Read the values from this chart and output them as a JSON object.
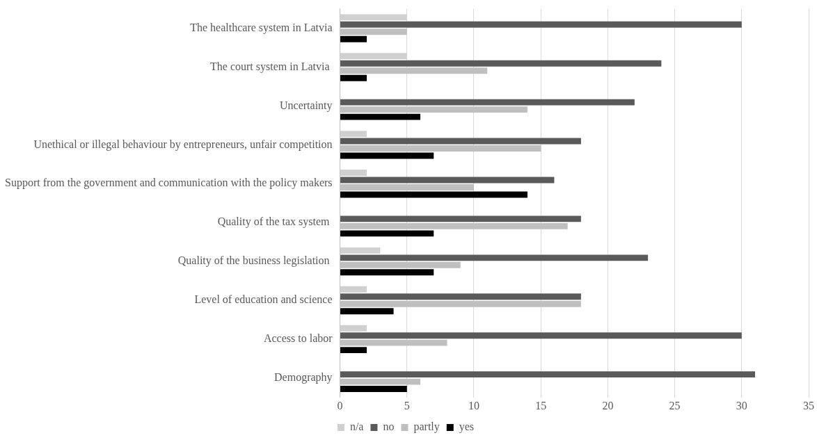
{
  "chart_data": {
    "type": "bar",
    "orientation": "horizontal",
    "categories": [
      "The healthcare system in Latvia",
      "The court system in Latvia ",
      "Uncertainty",
      "Unethical or illegal behaviour by entrepreneurs, unfair competition",
      "Support from the government and communication with the policy makers",
      "Quality of the tax system ",
      "Quality of the business legislation ",
      "Level of education and science",
      "Access to labor",
      "Demography"
    ],
    "series": [
      {
        "name": "n/a",
        "color": "#d0d0d0",
        "values": [
          5,
          5,
          0,
          2,
          2,
          0,
          3,
          2,
          2,
          0
        ]
      },
      {
        "name": "no",
        "color": "#5a5a5a",
        "values": [
          30,
          24,
          22,
          18,
          16,
          18,
          23,
          18,
          30,
          31
        ]
      },
      {
        "name": "partly",
        "color": "#bfbfbf",
        "values": [
          5,
          11,
          14,
          15,
          10,
          17,
          9,
          18,
          8,
          6
        ]
      },
      {
        "name": "yes",
        "color": "#000000",
        "values": [
          2,
          2,
          6,
          7,
          14,
          7,
          7,
          4,
          2,
          5
        ]
      }
    ],
    "xlim": [
      0,
      35
    ],
    "xticks": [
      0,
      5,
      10,
      15,
      20,
      25,
      30,
      35
    ],
    "grid": "x",
    "legend": "bottom"
  }
}
